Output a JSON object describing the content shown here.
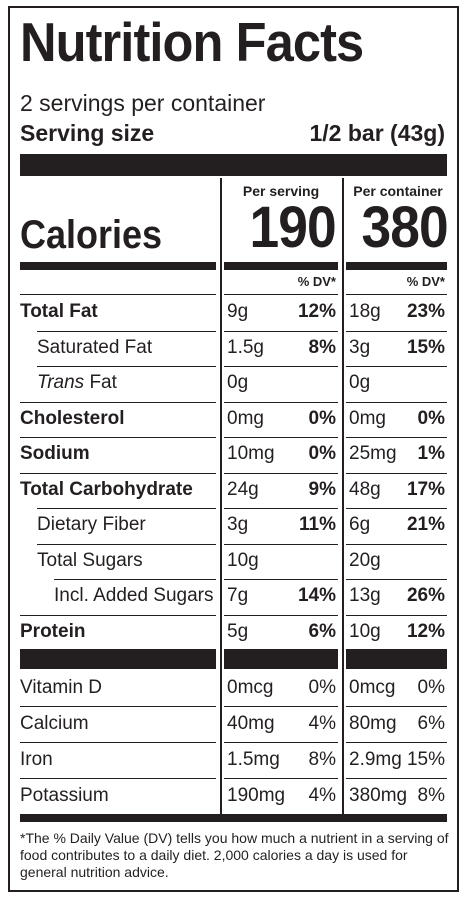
{
  "title": "Nutrition Facts",
  "servings_per_container": "2 servings per container",
  "serving_size": {
    "label": "Serving size",
    "value": "1/2 bar (43g)"
  },
  "columns": {
    "per_serving": "Per serving",
    "per_container": "Per container"
  },
  "calories": {
    "label": "Calories",
    "per_serving": "190",
    "per_container": "380"
  },
  "dv_header": "% DV*",
  "nutrients": [
    {
      "name": "Total Fat",
      "bold": true,
      "indent": 0,
      "amt1": "9g",
      "dv1": "12%",
      "amt2": "18g",
      "dv2": "23%"
    },
    {
      "name": "Saturated Fat",
      "bold": false,
      "indent": 1,
      "amt1": "1.5g",
      "dv1": "8%",
      "amt2": "3g",
      "dv2": "15%"
    },
    {
      "name_italic": "Trans",
      "name": " Fat",
      "bold": false,
      "indent": 1,
      "amt1": "0g",
      "dv1": "",
      "amt2": "0g",
      "dv2": ""
    },
    {
      "name": "Cholesterol",
      "bold": true,
      "indent": 0,
      "amt1": "0mg",
      "dv1": "0%",
      "amt2": "0mg",
      "dv2": "0%"
    },
    {
      "name": "Sodium",
      "bold": true,
      "indent": 0,
      "amt1": "10mg",
      "dv1": "0%",
      "amt2": "25mg",
      "dv2": "1%"
    },
    {
      "name": "Total Carbohydrate",
      "bold": true,
      "indent": 0,
      "amt1": "24g",
      "dv1": "9%",
      "amt2": "48g",
      "dv2": "17%"
    },
    {
      "name": "Dietary Fiber",
      "bold": false,
      "indent": 1,
      "amt1": "3g",
      "dv1": "11%",
      "amt2": "6g",
      "dv2": "21%"
    },
    {
      "name": "Total Sugars",
      "bold": false,
      "indent": 1,
      "amt1": "10g",
      "dv1": "",
      "amt2": "20g",
      "dv2": ""
    },
    {
      "name": "Incl. Added Sugars",
      "bold": false,
      "indent": 2,
      "amt1": "7g",
      "dv1": "14%",
      "amt2": "13g",
      "dv2": "26%"
    },
    {
      "name": "Protein",
      "bold": true,
      "indent": 0,
      "amt1": "5g",
      "dv1": "6%",
      "amt2": "10g",
      "dv2": "12%"
    }
  ],
  "vitamins": [
    {
      "name": "Vitamin D",
      "amt1": "0mcg",
      "dv1": "0%",
      "amt2": "0mcg",
      "dv2": "0%"
    },
    {
      "name": "Calcium",
      "amt1": "40mg",
      "dv1": "4%",
      "amt2": "80mg",
      "dv2": "6%"
    },
    {
      "name": "Iron",
      "amt1": "1.5mg",
      "dv1": "8%",
      "amt2": "2.9mg",
      "dv2": "15%"
    },
    {
      "name": "Potassium",
      "amt1": "190mg",
      "dv1": "4%",
      "amt2": "380mg",
      "dv2": "8%"
    }
  ],
  "footnote": "*The % Daily Value (DV) tells you how much a nutrient in a serving of food contributes to a daily diet. 2,000 calories a day is used for general nutrition advice."
}
